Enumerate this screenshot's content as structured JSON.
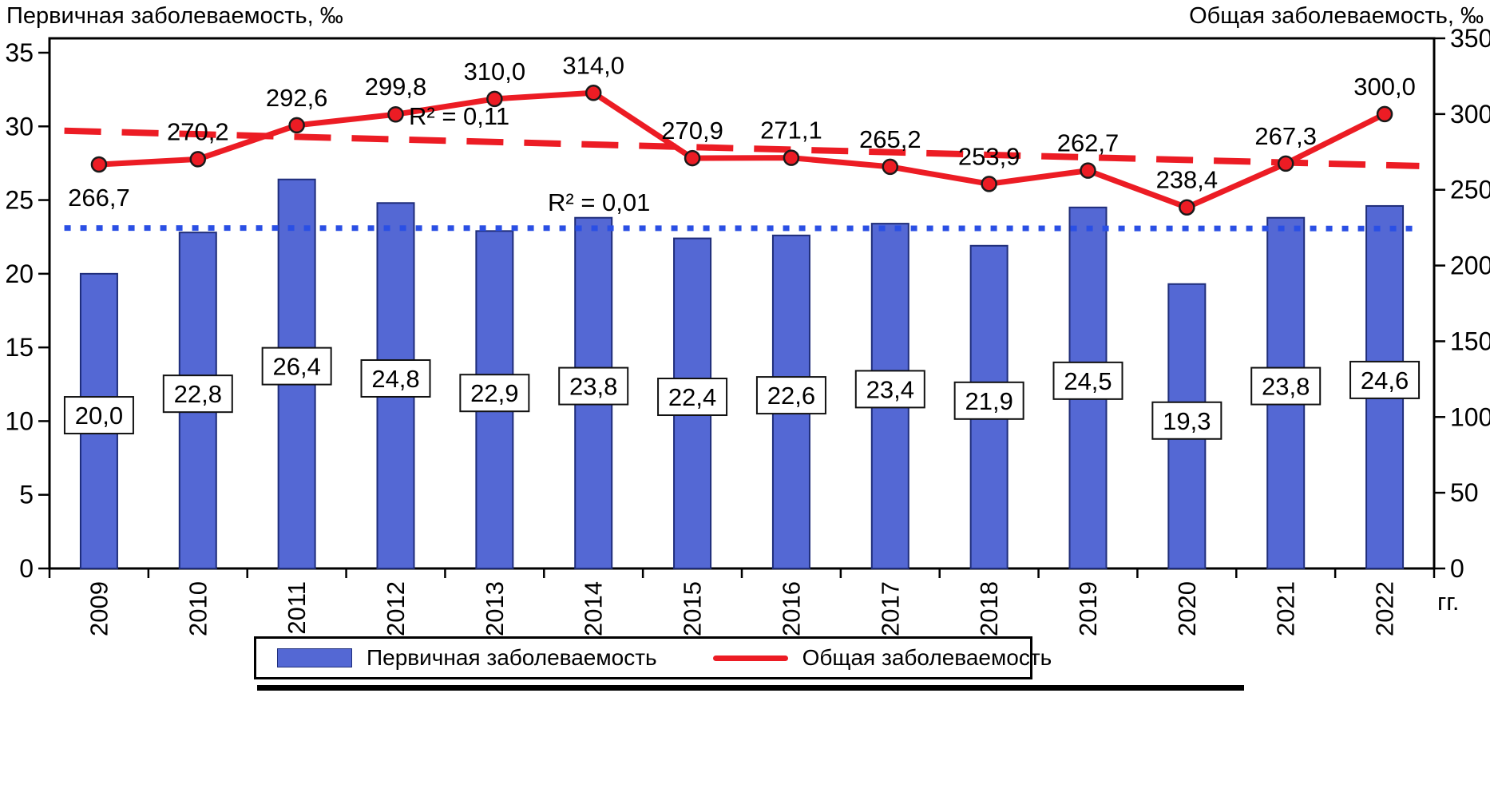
{
  "chart_data": {
    "type": "bar+line",
    "categories": [
      "2009",
      "2010",
      "2011",
      "2012",
      "2013",
      "2014",
      "2015",
      "2016",
      "2017",
      "2018",
      "2019",
      "2020",
      "2021",
      "2022"
    ],
    "series_bar": {
      "name": "Первичная заболеваемость",
      "axis": "left",
      "values": [
        20.0,
        22.8,
        26.4,
        24.8,
        22.9,
        23.8,
        22.4,
        22.6,
        23.4,
        21.9,
        24.5,
        19.3,
        23.8,
        24.6
      ]
    },
    "series_line": {
      "name": "Общая заболеваемость",
      "axis": "right",
      "values": [
        266.7,
        270.2,
        292.6,
        299.8,
        310.0,
        314.0,
        270.9,
        271.1,
        265.2,
        253.9,
        262.7,
        238.4,
        267.3,
        300.0
      ]
    },
    "left_axis": {
      "title": "Первичная заболеваемость, ‰",
      "min": 0,
      "max": 35,
      "step": 5
    },
    "right_axis": {
      "title": "Общая заболеваемость, ‰",
      "min": 0,
      "max": 350,
      "step": 50
    },
    "x_unit": "гг.",
    "annotations": {
      "r2_red": "R² = 0,11",
      "r2_blue": "R² = 0,01"
    },
    "trendlines": [
      {
        "series": "Общая заболеваемость",
        "style": "dashed",
        "color": "#ec1c24",
        "r2": "0,11"
      },
      {
        "series": "Первичная заболеваемость",
        "style": "dotted",
        "color": "#2a4fe4",
        "r2": "0,01"
      }
    ],
    "legend_position": "bottom",
    "grid": false,
    "colors": {
      "bar_fill": "#5468d4",
      "bar_stroke": "#1f2d7a",
      "line_red": "#ec1c24",
      "trend_blue": "#2a4fe4",
      "text": "#000000",
      "label_box_bg": "#ffffff",
      "label_box_border": "#111111"
    }
  }
}
